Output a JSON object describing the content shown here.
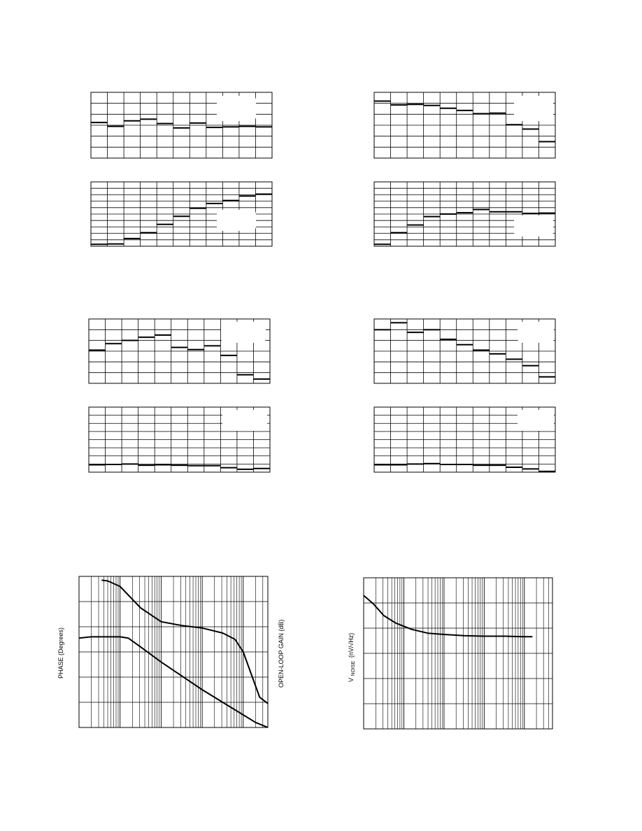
{
  "chart_data": [
    {
      "type": "line",
      "id": "a",
      "grid": true,
      "x_divisions": 11,
      "y_divisions": 6,
      "steps": [
        3.25,
        2.9,
        3.4,
        3.55,
        3.15,
        2.75,
        3.2,
        2.8,
        2.85,
        2.9,
        2.85
      ],
      "legend_box": true
    },
    {
      "type": "line",
      "id": "b",
      "grid": true,
      "x_divisions": 11,
      "y_divisions": 6,
      "steps": [
        5.2,
        4.85,
        4.9,
        4.8,
        4.55,
        4.35,
        4.05,
        4.1,
        3.05,
        2.65,
        1.5
      ],
      "legend_box": true
    },
    {
      "type": "line",
      "id": "c",
      "grid": true,
      "x_divisions": 11,
      "y_divisions": 10,
      "steps": [
        0.3,
        0.35,
        1.2,
        2.1,
        3.4,
        4.65,
        5.9,
        6.65,
        7.1,
        7.8,
        8.1
      ],
      "legend_box": true
    },
    {
      "type": "line",
      "id": "d",
      "grid": true,
      "x_divisions": 11,
      "y_divisions": 10,
      "steps": [
        0.3,
        2.1,
        3.3,
        4.6,
        5.0,
        5.2,
        5.7,
        5.35,
        5.35,
        5.1,
        5.15
      ],
      "legend_box": true
    },
    {
      "type": "line",
      "id": "e",
      "grid": true,
      "x_divisions": 11,
      "y_divisions": 6,
      "steps": [
        3.1,
        3.7,
        4.0,
        4.3,
        4.5,
        3.35,
        3.15,
        3.5,
        2.6,
        0.8,
        0.4
      ],
      "legend_box": true
    },
    {
      "type": "line",
      "id": "f",
      "grid": true,
      "x_divisions": 11,
      "y_divisions": 6,
      "steps": [
        5.0,
        5.65,
        4.75,
        5.0,
        4.1,
        3.6,
        3.1,
        2.75,
        2.25,
        1.65,
        0.6
      ],
      "legend_box": true
    },
    {
      "type": "line",
      "id": "g",
      "grid": true,
      "x_divisions": 11,
      "y_divisions": 8,
      "steps": [
        0.9,
        0.95,
        1.0,
        0.85,
        0.9,
        0.85,
        0.8,
        0.8,
        0.55,
        0.35,
        0.45
      ],
      "legend_box": true
    },
    {
      "type": "line",
      "id": "h",
      "grid": true,
      "x_divisions": 11,
      "y_divisions": 8,
      "steps": [
        0.9,
        0.9,
        1.0,
        1.05,
        0.95,
        0.95,
        0.85,
        0.85,
        0.6,
        0.4,
        0.1
      ],
      "legend_box": true
    },
    {
      "type": "line",
      "id": "bode",
      "grid": true,
      "xscale": "log",
      "decades": 4.6,
      "y_divisions": 6,
      "ylabel": "PHASE (Degrees)",
      "ylabel_right": "OPEN-LOOP GAIN (dB)",
      "series": [
        {
          "x": [
            0.55,
            0.7,
            1.0,
            1.5,
            2.0,
            2.5,
            3.0,
            3.5,
            3.8,
            4.0,
            4.2,
            4.4,
            4.6
          ],
          "y": [
            5.85,
            5.82,
            5.6,
            4.75,
            4.2,
            4.05,
            3.95,
            3.75,
            3.5,
            3.0,
            2.1,
            1.2,
            0.95
          ]
        },
        {
          "x": [
            0.0,
            0.3,
            1.0,
            1.2,
            1.5,
            2.0,
            2.5,
            3.0,
            3.5,
            4.0,
            4.3,
            4.6
          ],
          "y": [
            3.55,
            3.6,
            3.6,
            3.55,
            3.2,
            2.6,
            2.05,
            1.5,
            1.0,
            0.5,
            0.2,
            0.0
          ]
        }
      ]
    },
    {
      "type": "line",
      "id": "noise",
      "grid": true,
      "xscale": "log",
      "decades": 4.7,
      "y_divisions": 6,
      "ylabel": "V",
      "ylabel_sub": "NOISE",
      "ylabel_unit": "(nV/√Hz)",
      "series": [
        {
          "x": [
            0.0,
            0.25,
            0.5,
            0.8,
            1.2,
            1.6,
            2.0,
            2.5,
            3.0,
            3.5,
            4.0,
            4.2
          ],
          "y": [
            5.3,
            4.95,
            4.5,
            4.2,
            3.95,
            3.8,
            3.75,
            3.7,
            3.68,
            3.68,
            3.66,
            3.66
          ]
        }
      ]
    }
  ]
}
